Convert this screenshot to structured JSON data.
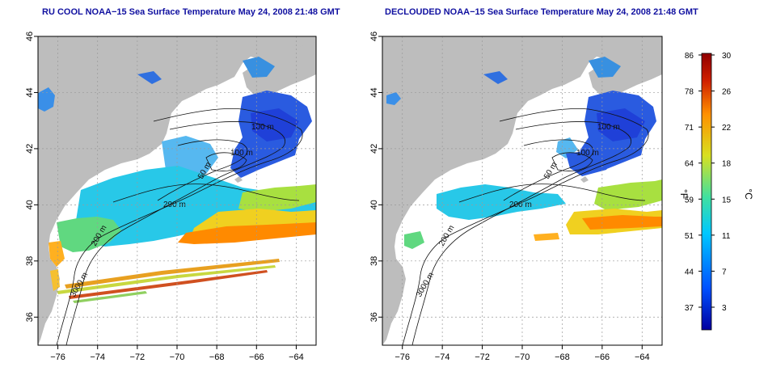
{
  "panels": [
    {
      "title": "RU COOL NOAA−15 Sea Surface Temperature May 24, 2008 21:48 GMT",
      "contour_labels": [
        "100 m",
        "100 m",
        "50 m",
        "200 m",
        "3000 m",
        "200 m"
      ]
    },
    {
      "title": "DECLOUDED NOAA−15 Sea Surface Temperature May 24, 2008 21:48 GMT",
      "contour_labels": [
        "100 m",
        "100 m",
        "50 m",
        "200 m",
        "3000 m",
        "200 m"
      ]
    }
  ],
  "axes": {
    "x_ticks": [
      "−76",
      "−74",
      "−72",
      "−70",
      "−68",
      "−66",
      "−64"
    ],
    "y_ticks": [
      "36",
      "38",
      "40",
      "42",
      "44",
      "46"
    ]
  },
  "colorbar": {
    "fahrenheit_label": "°F",
    "celsius_label": "°C",
    "fahrenheit_ticks": [
      "86",
      "78",
      "71",
      "64",
      "59",
      "51",
      "44",
      "37"
    ],
    "celsius_ticks": [
      "30",
      "26",
      "22",
      "18",
      "15",
      "11",
      "7",
      "3"
    ],
    "colors": [
      "#0000a0",
      "#0050ff",
      "#00c8ff",
      "#40e0a0",
      "#d8e020",
      "#ff9000",
      "#d02000",
      "#900000"
    ]
  },
  "colors": {
    "land": "#bdbdbd",
    "title": "#1010a0"
  }
}
